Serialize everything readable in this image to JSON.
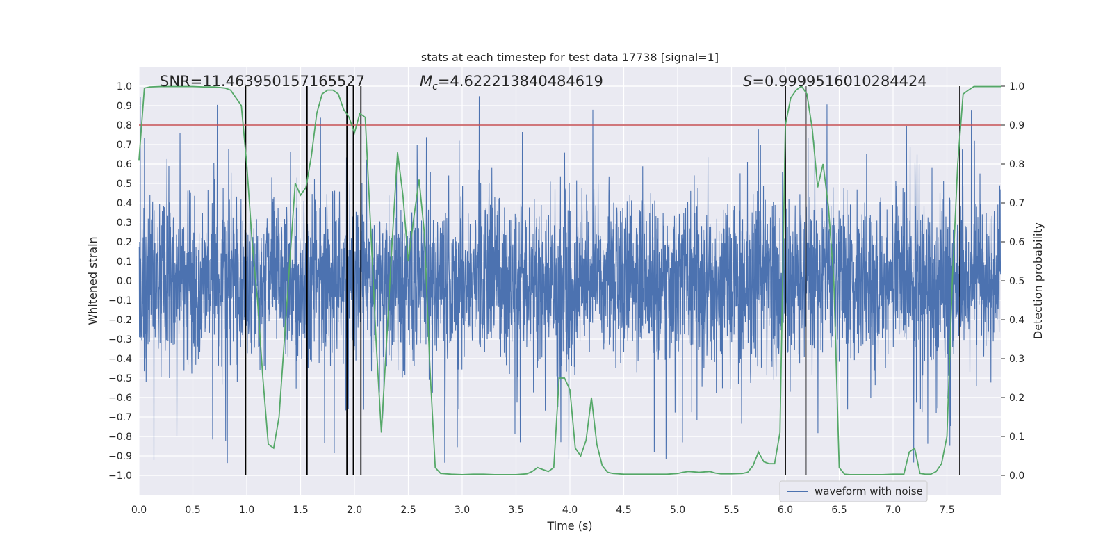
{
  "chart_data": {
    "type": "line",
    "title": "stats at each timestep for test data 17738 [signal=1]",
    "xlabel": "Time (s)",
    "ylabel": "Whitened strain",
    "y2label": "Detection probability",
    "xlim": [
      0.0,
      8.0
    ],
    "ylim": [
      -1.1,
      1.1
    ],
    "y2lim": [
      -0.05,
      1.05
    ],
    "x_ticks": [
      0.0,
      0.5,
      1.0,
      1.5,
      2.0,
      2.5,
      3.0,
      3.5,
      4.0,
      4.5,
      5.0,
      5.5,
      6.0,
      6.5,
      7.0,
      7.5
    ],
    "x_tick_labels": [
      "0.0",
      "0.5",
      "1.0",
      "1.5",
      "2.0",
      "2.5",
      "3.0",
      "3.5",
      "4.0",
      "4.5",
      "5.0",
      "5.5",
      "6.0",
      "6.5",
      "7.0",
      "7.5"
    ],
    "y_ticks": [
      -1.0,
      -0.9,
      -0.8,
      -0.7,
      -0.6,
      -0.5,
      -0.4,
      -0.3,
      -0.2,
      -0.1,
      0.0,
      0.1,
      0.2,
      0.3,
      0.4,
      0.5,
      0.6,
      0.7,
      0.8,
      0.9,
      1.0
    ],
    "y_tick_labels": [
      "−1.0",
      "−0.9",
      "−0.8",
      "−0.7",
      "−0.6",
      "−0.5",
      "−0.4",
      "−0.3",
      "−0.2",
      "−0.1",
      "0.0",
      "0.1",
      "0.2",
      "0.3",
      "0.4",
      "0.5",
      "0.6",
      "0.7",
      "0.8",
      "0.9",
      "1.0"
    ],
    "y2_ticks": [
      0.0,
      0.1,
      0.2,
      0.3,
      0.4,
      0.5,
      0.6,
      0.7,
      0.8,
      0.9,
      1.0
    ],
    "y2_tick_labels": [
      "0.0",
      "0.1",
      "0.2",
      "0.3",
      "0.4",
      "0.5",
      "0.6",
      "0.7",
      "0.8",
      "0.9",
      "1.0"
    ],
    "grid": true,
    "annotations": {
      "snr": "SNR=11.463950157165527",
      "mc_symbol": "M",
      "mc_sub": "c",
      "mc_value": "=4.622213840484619",
      "s_symbol": "S",
      "s_value": "=0.9999516010284424"
    },
    "threshold": {
      "y2": 0.9,
      "color": "#c44e52"
    },
    "vlines": [
      0.99,
      1.56,
      1.93,
      1.99,
      2.06,
      6.0,
      6.19,
      7.62
    ],
    "waveform": {
      "name": "waveform with noise",
      "color": "#4c72b0",
      "sample_rate_hz": 512,
      "envelope_core": 0.39,
      "envelope_max": 0.95
    },
    "probability": {
      "color": "#55a868",
      "x": [
        0.0,
        0.05,
        0.1,
        0.2,
        0.3,
        0.4,
        0.5,
        0.6,
        0.7,
        0.8,
        0.85,
        0.9,
        0.95,
        1.0,
        1.05,
        1.1,
        1.15,
        1.2,
        1.25,
        1.3,
        1.35,
        1.4,
        1.45,
        1.5,
        1.55,
        1.6,
        1.65,
        1.7,
        1.75,
        1.8,
        1.85,
        1.9,
        1.95,
        2.0,
        2.05,
        2.1,
        2.15,
        2.2,
        2.25,
        2.3,
        2.35,
        2.4,
        2.45,
        2.5,
        2.55,
        2.6,
        2.65,
        2.7,
        2.75,
        2.8,
        2.9,
        3.0,
        3.1,
        3.2,
        3.3,
        3.4,
        3.5,
        3.55,
        3.6,
        3.65,
        3.7,
        3.75,
        3.8,
        3.85,
        3.9,
        3.95,
        4.0,
        4.05,
        4.1,
        4.15,
        4.2,
        4.25,
        4.3,
        4.35,
        4.4,
        4.5,
        4.6,
        4.7,
        4.8,
        4.9,
        5.0,
        5.05,
        5.1,
        5.15,
        5.2,
        5.25,
        5.3,
        5.35,
        5.4,
        5.5,
        5.6,
        5.65,
        5.7,
        5.75,
        5.8,
        5.85,
        5.9,
        5.95,
        6.0,
        6.05,
        6.1,
        6.15,
        6.2,
        6.25,
        6.3,
        6.35,
        6.4,
        6.45,
        6.5,
        6.55,
        6.6,
        6.7,
        6.8,
        6.9,
        7.0,
        7.1,
        7.15,
        7.2,
        7.25,
        7.3,
        7.35,
        7.4,
        7.45,
        7.5,
        7.55,
        7.6,
        7.65,
        7.7,
        7.75,
        7.8,
        7.9,
        8.0
      ],
      "y": [
        0.81,
        0.995,
        0.998,
        0.999,
        0.999,
        0.999,
        0.999,
        0.998,
        0.998,
        0.995,
        0.99,
        0.97,
        0.95,
        0.8,
        0.6,
        0.45,
        0.25,
        0.08,
        0.07,
        0.15,
        0.35,
        0.55,
        0.75,
        0.72,
        0.74,
        0.82,
        0.93,
        0.98,
        0.99,
        0.99,
        0.98,
        0.94,
        0.92,
        0.88,
        0.93,
        0.92,
        0.64,
        0.35,
        0.11,
        0.35,
        0.6,
        0.83,
        0.72,
        0.55,
        0.66,
        0.76,
        0.62,
        0.28,
        0.02,
        0.005,
        0.003,
        0.002,
        0.003,
        0.003,
        0.002,
        0.002,
        0.002,
        0.003,
        0.004,
        0.01,
        0.02,
        0.015,
        0.01,
        0.02,
        0.25,
        0.25,
        0.22,
        0.07,
        0.05,
        0.09,
        0.2,
        0.08,
        0.025,
        0.008,
        0.005,
        0.003,
        0.003,
        0.003,
        0.003,
        0.003,
        0.005,
        0.008,
        0.01,
        0.009,
        0.008,
        0.009,
        0.01,
        0.006,
        0.004,
        0.004,
        0.005,
        0.008,
        0.025,
        0.06,
        0.035,
        0.03,
        0.03,
        0.11,
        0.9,
        0.97,
        0.99,
        1.0,
        0.98,
        0.89,
        0.74,
        0.8,
        0.69,
        0.5,
        0.02,
        0.003,
        0.002,
        0.002,
        0.002,
        0.002,
        0.003,
        0.003,
        0.06,
        0.07,
        0.005,
        0.003,
        0.003,
        0.01,
        0.03,
        0.1,
        0.5,
        0.8,
        0.98,
        0.99,
        0.999,
        0.999,
        0.999,
        0.999
      ]
    }
  }
}
